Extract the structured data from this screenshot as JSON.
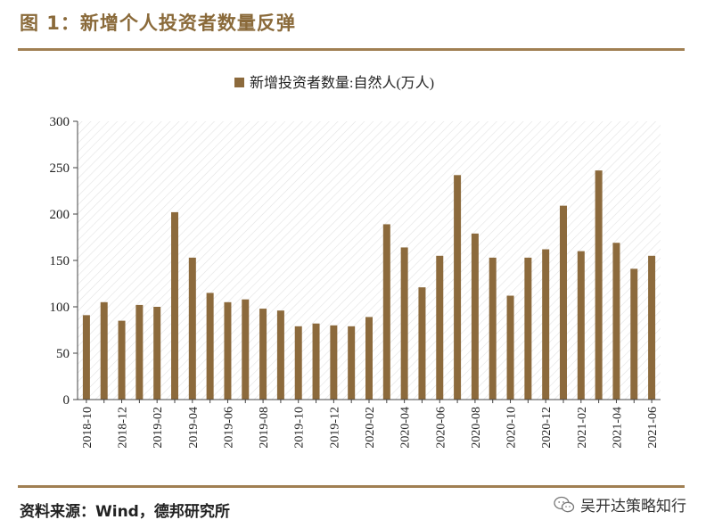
{
  "figure": {
    "title": "图 1：新增个人投资者数量反弹",
    "source": "资料来源：Wind，德邦研究所",
    "watermark": "吴开达策略知行"
  },
  "colors": {
    "bar": "#8c6a3c",
    "accent": "#a07f52",
    "title": "#8a6a3a",
    "grid_hatch": "#dcdcdc"
  },
  "chart_data": {
    "type": "bar",
    "legend": "新增投资者数量:自然人(万人)",
    "legend_position": "top-center",
    "ylim": [
      0,
      300
    ],
    "yticks": [
      0,
      50,
      100,
      150,
      200,
      250,
      300
    ],
    "grid": false,
    "categories": [
      "2018-10",
      "2018-11",
      "2018-12",
      "2019-01",
      "2019-02",
      "2019-03",
      "2019-04",
      "2019-05",
      "2019-06",
      "2019-07",
      "2019-08",
      "2019-09",
      "2019-10",
      "2019-11",
      "2019-12",
      "2020-01",
      "2020-02",
      "2020-03",
      "2020-04",
      "2020-05",
      "2020-06",
      "2020-07",
      "2020-08",
      "2020-09",
      "2020-10",
      "2020-11",
      "2020-12",
      "2021-01",
      "2021-02",
      "2021-03",
      "2021-04",
      "2021-05",
      "2021-06"
    ],
    "xtick_labels": [
      "2018-10",
      "2018-12",
      "2019-02",
      "2019-04",
      "2019-06",
      "2019-08",
      "2019-10",
      "2019-12",
      "2020-02",
      "2020-04",
      "2020-06",
      "2020-08",
      "2020-10",
      "2020-12",
      "2021-02",
      "2021-04",
      "2021-06"
    ],
    "series": [
      {
        "name": "新增投资者数量:自然人(万人)",
        "values": [
          91,
          105,
          85,
          102,
          100,
          202,
          153,
          115,
          105,
          108,
          98,
          96,
          79,
          82,
          80,
          79,
          89,
          189,
          164,
          121,
          155,
          242,
          179,
          153,
          112,
          153,
          162,
          209,
          160,
          247,
          169,
          141,
          155
        ]
      }
    ]
  }
}
